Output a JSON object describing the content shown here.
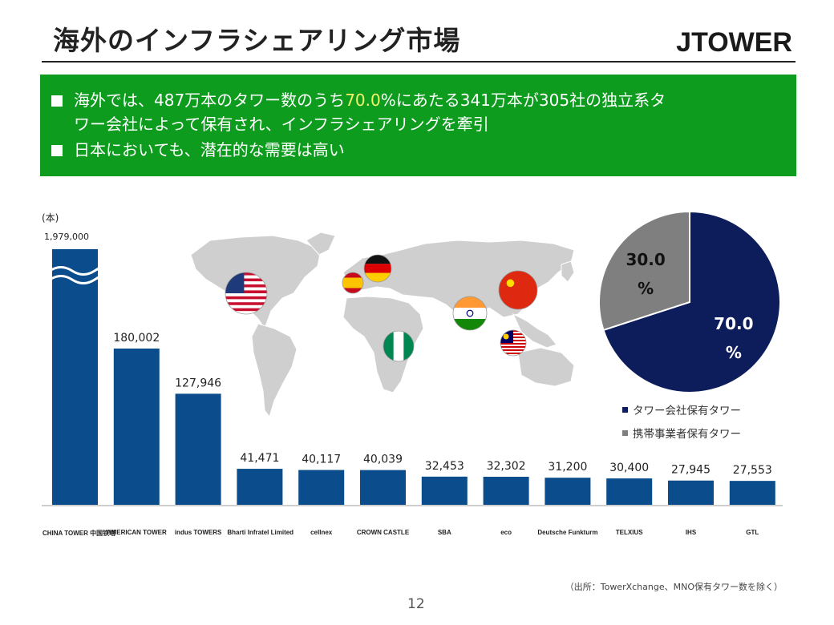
{
  "header": {
    "title": "海外のインフラシェアリング市場",
    "logo": "JTOWER"
  },
  "banner": {
    "b1_pre": "海外では、487万本のタワー数のうち",
    "b1_hl": "70.0",
    "b1_post": "%にあたる341万本が305社の独立系タ",
    "b1_cont": "ワー会社によって保有され、インフラシェアリングを牽引",
    "b2": "日本においても、潜在的な需要は高い"
  },
  "chart_data": [
    {
      "type": "bar",
      "ylabel": "(本)",
      "categories": [
        "China Tower",
        "American Tower",
        "Indus Towers",
        "Bharti Infratel",
        "Cellnex",
        "Crown Castle",
        "SBA",
        "eco",
        "Deutsche Funkturm",
        "Telxius",
        "IHS",
        "GTL"
      ],
      "values": [
        1979000,
        180002,
        127946,
        41471,
        40117,
        40039,
        32453,
        32302,
        31200,
        30400,
        27945,
        27553
      ],
      "value_labels": [
        "1,979,000",
        "180,002",
        "127,946",
        "41,471",
        "40,117",
        "40,039",
        "32,453",
        "32,302",
        "31,200",
        "30,400",
        "27,945",
        "27,553"
      ],
      "axis_break": true,
      "color": "#0b4d8c"
    },
    {
      "type": "pie",
      "slices": [
        {
          "label": "タワー会社保有タワー",
          "value": 70.0,
          "value_label": "70.0 %",
          "color": "#0d1d5c"
        },
        {
          "label": "携帯事業者保有タワー",
          "value": 30.0,
          "value_label": "30.0 %",
          "color": "#7f7f7f"
        }
      ]
    }
  ],
  "companies": [
    "CHINA TOWER 中国铁塔",
    "AMERICAN TOWER",
    "indus TOWERS",
    "Bharti Infratel Limited",
    "cellnex",
    "CROWN CASTLE",
    "SBA",
    "eco",
    "Deutsche Funkturm",
    "TELXIUS",
    "IHS",
    "GTL"
  ],
  "flags": [
    "usa-flag",
    "spain-flag",
    "germany-flag",
    "china-flag",
    "india-flag",
    "nigeria-flag",
    "malaysia-flag"
  ],
  "footer": {
    "source": "（出所：TowerXchange、MNO保有タワー数を除く）",
    "page": "12"
  }
}
